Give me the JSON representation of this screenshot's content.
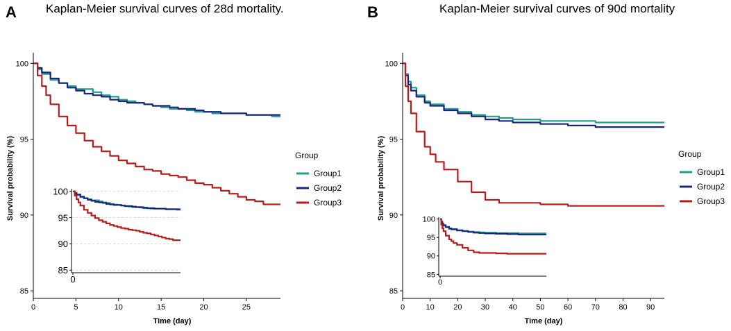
{
  "colors": {
    "group1": "#1f9e89",
    "group2": "#1a237e",
    "group3": "#b71c1c",
    "axis": "#000000",
    "grid": "#c8c8c8"
  },
  "legend": {
    "title": "Group",
    "labels": [
      "Group1",
      "Group2",
      "Group3"
    ]
  },
  "chart_data": [
    {
      "panel_label": "A",
      "type": "line",
      "title": "Kaplan-Meier survival curves of 28d mortality.",
      "xlabel": "Time (day)",
      "ylabel": "Survival probability (%)",
      "xlim": [
        0,
        29
      ],
      "ylim": [
        84.5,
        100.7
      ],
      "xticks": [
        0,
        5,
        10,
        15,
        20,
        25
      ],
      "xtick_labels": [
        "0",
        "5",
        "10",
        "15",
        "20",
        "25"
      ],
      "yticks": [
        85,
        90,
        95,
        100
      ],
      "ytick_labels": [
        "85",
        "90",
        "95",
        "100"
      ],
      "legend_position": "right",
      "series": [
        {
          "name": "Group1",
          "x": [
            0,
            0.5,
            1,
            2,
            3,
            4,
            5,
            6,
            7,
            8,
            9,
            10,
            11,
            12,
            13,
            14,
            15,
            16,
            17,
            18,
            19,
            20,
            21,
            22,
            23,
            24,
            25,
            26,
            27,
            28,
            29
          ],
          "y": [
            100,
            99.6,
            99.3,
            98.9,
            98.7,
            98.5,
            98.3,
            98.3,
            98.1,
            97.9,
            97.8,
            97.6,
            97.5,
            97.4,
            97.3,
            97.2,
            97.1,
            97.0,
            97.0,
            96.9,
            96.8,
            96.8,
            96.7,
            96.7,
            96.7,
            96.7,
            96.6,
            96.6,
            96.6,
            96.5,
            96.5
          ]
        },
        {
          "name": "Group2",
          "x": [
            0,
            0.5,
            1,
            2,
            3,
            4,
            5,
            6,
            7,
            8,
            9,
            10,
            11,
            12,
            13,
            14,
            15,
            16,
            17,
            18,
            19,
            20,
            21,
            22,
            23,
            24,
            25,
            26,
            27,
            28,
            29
          ],
          "y": [
            100,
            99.7,
            99.4,
            99.0,
            98.7,
            98.4,
            98.2,
            98.0,
            97.9,
            97.8,
            97.6,
            97.5,
            97.4,
            97.4,
            97.3,
            97.2,
            97.2,
            97.1,
            97.0,
            97.0,
            96.9,
            96.8,
            96.8,
            96.7,
            96.7,
            96.7,
            96.6,
            96.6,
            96.6,
            96.6,
            96.6
          ]
        },
        {
          "name": "Group3",
          "x": [
            0,
            0.5,
            1,
            1.5,
            2,
            3,
            4,
            5,
            6,
            7,
            8,
            9,
            10,
            11,
            12,
            13,
            14,
            15,
            16,
            17,
            18,
            19,
            20,
            21,
            22,
            23,
            24,
            25,
            26,
            27,
            28,
            29
          ],
          "y": [
            100,
            99.2,
            98.5,
            97.9,
            97.3,
            96.5,
            95.9,
            95.4,
            94.9,
            94.5,
            94.2,
            93.9,
            93.6,
            93.4,
            93.2,
            93.0,
            92.9,
            92.7,
            92.6,
            92.5,
            92.3,
            92.1,
            92.0,
            91.8,
            91.6,
            91.4,
            91.2,
            91.0,
            90.9,
            90.7,
            90.7,
            90.7
          ]
        }
      ],
      "inset": {
        "xtick_labels": [
          "0"
        ],
        "yticks": [
          85,
          90,
          95,
          100
        ],
        "ytick_labels": [
          "85",
          "90",
          "95",
          "100"
        ],
        "grid": true
      }
    },
    {
      "panel_label": "B",
      "type": "line",
      "title": "Kaplan-Meier survival curves of 90d mortality",
      "xlabel": "Time (day)",
      "ylabel": "Survival probability (%)",
      "xlim": [
        0,
        95
      ],
      "ylim": [
        84.5,
        100.7
      ],
      "xticks": [
        0,
        10,
        20,
        30,
        40,
        50,
        60,
        70,
        80,
        90
      ],
      "xtick_labels": [
        "0",
        "10",
        "20",
        "30",
        "40",
        "50",
        "60",
        "70",
        "80",
        "90"
      ],
      "yticks": [
        85,
        90,
        95,
        100
      ],
      "ytick_labels": [
        "85",
        "90",
        "95",
        "100"
      ],
      "legend_position": "right",
      "series": [
        {
          "name": "Group1",
          "x": [
            0,
            1,
            2,
            3,
            5,
            8,
            10,
            15,
            20,
            25,
            30,
            35,
            40,
            50,
            60,
            70,
            80,
            90,
            95
          ],
          "y": [
            100,
            99.3,
            98.8,
            98.4,
            97.9,
            97.5,
            97.3,
            97.0,
            96.8,
            96.6,
            96.5,
            96.4,
            96.3,
            96.2,
            96.2,
            96.1,
            96.1,
            96.1,
            96.1
          ]
        },
        {
          "name": "Group2",
          "x": [
            0,
            1,
            2,
            3,
            5,
            8,
            10,
            15,
            20,
            25,
            30,
            35,
            40,
            50,
            60,
            70,
            80,
            90,
            95
          ],
          "y": [
            100,
            99.2,
            98.6,
            98.2,
            97.8,
            97.4,
            97.2,
            96.9,
            96.7,
            96.5,
            96.3,
            96.2,
            96.1,
            96.0,
            95.9,
            95.8,
            95.8,
            95.8,
            95.8
          ]
        },
        {
          "name": "Group3",
          "x": [
            0,
            1,
            2,
            3,
            5,
            8,
            10,
            12,
            15,
            20,
            25,
            30,
            35,
            40,
            50,
            60,
            70,
            80,
            90,
            95
          ],
          "y": [
            100,
            98.5,
            97.5,
            96.7,
            95.5,
            94.5,
            94.0,
            93.5,
            93.0,
            92.2,
            91.5,
            91.0,
            90.8,
            90.8,
            90.7,
            90.6,
            90.6,
            90.6,
            90.6,
            90.6
          ]
        }
      ],
      "inset": {
        "xtick_labels": [
          "0"
        ],
        "yticks": [
          85,
          90,
          95,
          100
        ],
        "ytick_labels": [
          "85",
          "90",
          "95",
          "100"
        ],
        "grid": false
      }
    }
  ]
}
